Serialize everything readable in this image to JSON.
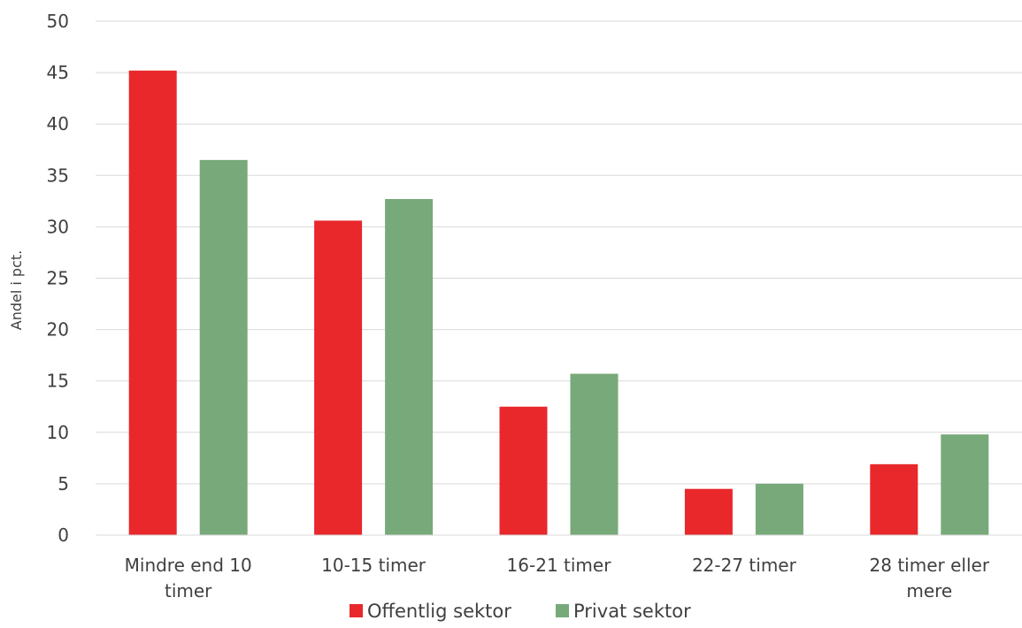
{
  "chart_data": {
    "type": "bar",
    "categories": [
      [
        "Mindre end 10",
        "timer"
      ],
      [
        "10-15 timer"
      ],
      [
        "16-21 timer"
      ],
      [
        "22-27 timer"
      ],
      [
        "28 timer eller",
        "mere"
      ]
    ],
    "series": [
      {
        "name": "Offentlig sektor",
        "color": "#e8282b",
        "values": [
          45.2,
          30.6,
          12.5,
          4.5,
          6.9
        ]
      },
      {
        "name": "Privat sektor",
        "color": "#78a97a",
        "values": [
          36.5,
          32.7,
          15.7,
          5.0,
          9.8
        ]
      }
    ],
    "ylabel": "Andel i pct.",
    "ylim": [
      0,
      50
    ],
    "yticks": [
      0,
      5,
      10,
      15,
      20,
      25,
      30,
      35,
      40,
      45,
      50
    ],
    "grid": true,
    "legend": "bottom"
  }
}
